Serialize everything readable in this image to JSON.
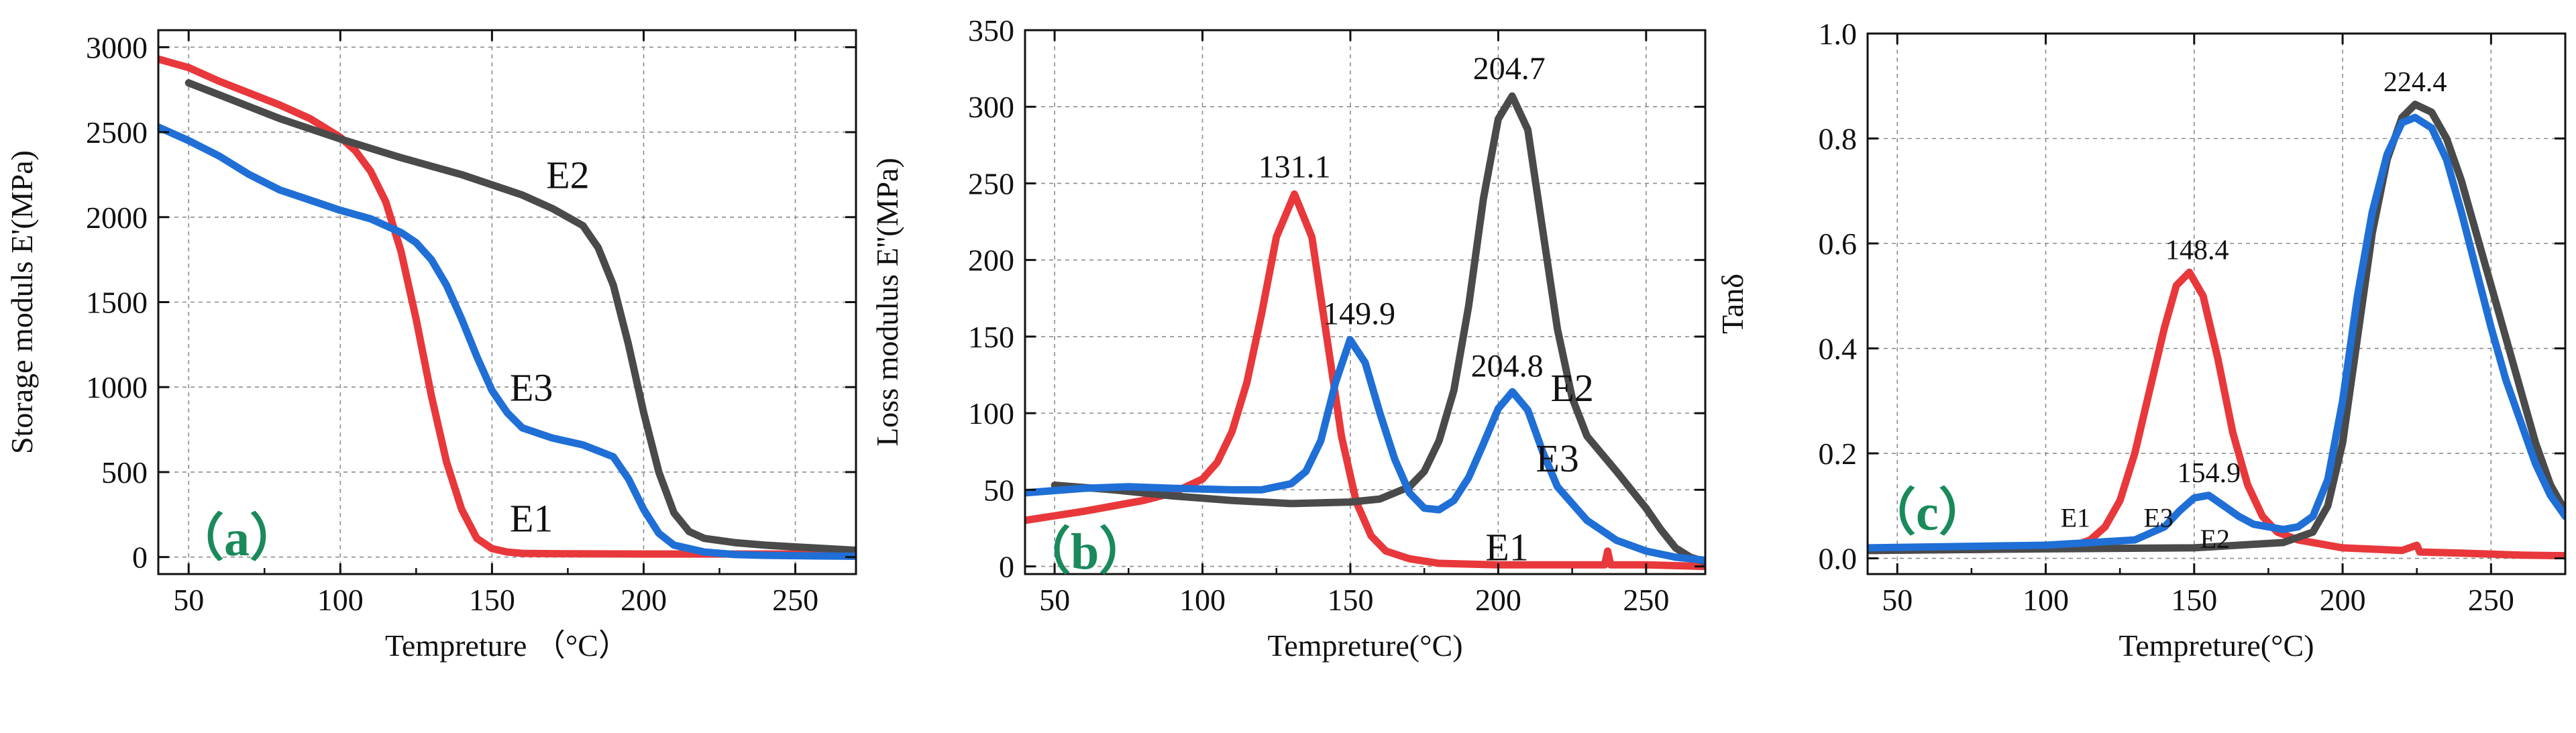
{
  "colors": {
    "E1": "#e8383b",
    "E2": "#4a4a4a",
    "E3": "#1f6fd6",
    "tag": "#1a8a5a",
    "grid": "#8c8c8c"
  },
  "chart_data": [
    {
      "type": "line",
      "panel_label": "（a）",
      "xlabel": "Tempreture （°C）",
      "ylabel": "Storage moduls E'(MPa)",
      "xlim": [
        40,
        270
      ],
      "ylim": [
        -100,
        3100
      ],
      "xticks": [
        "50",
        "100",
        "150",
        "200",
        "250"
      ],
      "yticks": [
        "0",
        "500",
        "1000",
        "1500",
        "2000",
        "2500",
        "3000"
      ],
      "series": [
        {
          "name": "E1",
          "x": [
            40,
            50,
            60,
            70,
            80,
            90,
            100,
            105,
            110,
            115,
            120,
            125,
            130,
            135,
            140,
            145,
            150,
            155,
            160,
            170,
            200,
            250,
            270
          ],
          "y": [
            2930,
            2880,
            2800,
            2730,
            2660,
            2580,
            2470,
            2390,
            2270,
            2090,
            1800,
            1400,
            950,
            560,
            280,
            110,
            50,
            30,
            22,
            20,
            18,
            18,
            18
          ]
        },
        {
          "name": "E2",
          "x": [
            50,
            60,
            80,
            100,
            120,
            140,
            160,
            170,
            180,
            185,
            190,
            195,
            200,
            205,
            210,
            215,
            220,
            230,
            240,
            250,
            260,
            270
          ],
          "y": [
            2790,
            2720,
            2580,
            2460,
            2350,
            2250,
            2130,
            2050,
            1950,
            1820,
            1600,
            1250,
            850,
            500,
            260,
            150,
            110,
            85,
            70,
            60,
            50,
            40
          ]
        },
        {
          "name": "E3",
          "x": [
            40,
            50,
            60,
            70,
            80,
            90,
            100,
            110,
            120,
            125,
            130,
            135,
            140,
            145,
            150,
            155,
            160,
            170,
            180,
            190,
            195,
            200,
            205,
            210,
            220,
            230,
            240,
            250,
            260,
            270
          ],
          "y": [
            2530,
            2450,
            2360,
            2250,
            2160,
            2100,
            2040,
            1990,
            1910,
            1850,
            1750,
            1600,
            1400,
            1180,
            980,
            850,
            760,
            700,
            660,
            590,
            460,
            280,
            140,
            70,
            30,
            15,
            10,
            8,
            6,
            5
          ]
        }
      ],
      "labels": [
        {
          "text": "E2",
          "x": 175,
          "y": 2170
        },
        {
          "text": "E3",
          "x": 163,
          "y": 920
        },
        {
          "text": "E1",
          "x": 163,
          "y": 150
        }
      ]
    },
    {
      "type": "line",
      "panel_label": "（b）",
      "xlabel": "Tempreture(°C)",
      "ylabel": "Loss modulus E''(MPa)",
      "xlim": [
        40,
        270
      ],
      "ylim": [
        -5,
        350
      ],
      "xticks": [
        "50",
        "100",
        "150",
        "200",
        "250"
      ],
      "yticks": [
        "0",
        "50",
        "100",
        "150",
        "200",
        "250",
        "300",
        "350"
      ],
      "series": [
        {
          "name": "E1",
          "x": [
            40,
            60,
            80,
            90,
            100,
            105,
            110,
            115,
            120,
            125,
            131.1,
            137,
            142,
            147,
            152,
            157,
            162,
            170,
            180,
            200,
            230,
            236,
            237,
            238,
            250,
            270
          ],
          "y": [
            30,
            36,
            43,
            48,
            57,
            68,
            88,
            120,
            165,
            215,
            243,
            215,
            150,
            85,
            42,
            20,
            10,
            5,
            2,
            1,
            1,
            1,
            10,
            1,
            1,
            0
          ]
        },
        {
          "name": "E2",
          "x": [
            50,
            70,
            90,
            110,
            130,
            150,
            160,
            170,
            175,
            180,
            185,
            190,
            195,
            200,
            204.7,
            210,
            215,
            220,
            225,
            230,
            240,
            245,
            250,
            255,
            260,
            265,
            270
          ],
          "y": [
            53,
            50,
            46,
            43,
            41,
            42,
            44,
            52,
            62,
            82,
            115,
            170,
            240,
            292,
            307,
            285,
            220,
            155,
            110,
            85,
            62,
            50,
            38,
            24,
            12,
            6,
            3
          ]
        },
        {
          "name": "E3",
          "x": [
            40,
            60,
            75,
            90,
            110,
            120,
            130,
            135,
            140,
            145,
            149.9,
            155,
            160,
            165,
            170,
            175,
            180,
            185,
            190,
            195,
            200,
            204.8,
            210,
            215,
            220,
            230,
            240,
            250,
            260,
            270
          ],
          "y": [
            48,
            51,
            52,
            51,
            50,
            50,
            54,
            62,
            82,
            120,
            148,
            133,
            100,
            70,
            48,
            38,
            37,
            43,
            58,
            80,
            103,
            114,
            102,
            75,
            52,
            30,
            17,
            10,
            6,
            4
          ]
        }
      ],
      "labels": [
        {
          "text": "131.1",
          "x": 131.1,
          "y": 254
        },
        {
          "text": "149.9",
          "x": 153,
          "y": 158
        },
        {
          "text": "204.7",
          "x": 203.7,
          "y": 318
        },
        {
          "text": "204.8",
          "x": 203,
          "y": 124
        },
        {
          "text": "E2",
          "x": 225,
          "y": 108
        },
        {
          "text": "E3",
          "x": 220,
          "y": 62
        },
        {
          "text": "E1",
          "x": 203,
          "y": 4
        }
      ]
    },
    {
      "type": "line",
      "panel_label": "（c）",
      "xlabel": "Tempreture(°C)",
      "ylabel": "Tanδ",
      "xlim": [
        40,
        275
      ],
      "ylim": [
        -0.03,
        1.0
      ],
      "xticks": [
        "50",
        "100",
        "150",
        "200",
        "250"
      ],
      "yticks": [
        "0.0",
        "0.2",
        "0.4",
        "0.6",
        "0.8",
        "1.0"
      ],
      "series": [
        {
          "name": "E1",
          "x": [
            40,
            80,
            100,
            110,
            115,
            120,
            125,
            130,
            135,
            140,
            144,
            148.4,
            153,
            158,
            163,
            168,
            173,
            178,
            185,
            200,
            220,
            225,
            226,
            240,
            250,
            260,
            275
          ],
          "y": [
            0.015,
            0.017,
            0.02,
            0.025,
            0.035,
            0.06,
            0.11,
            0.2,
            0.32,
            0.44,
            0.52,
            0.545,
            0.5,
            0.38,
            0.24,
            0.14,
            0.08,
            0.05,
            0.035,
            0.02,
            0.015,
            0.025,
            0.012,
            0.01,
            0.008,
            0.006,
            0.005
          ]
        },
        {
          "name": "E2",
          "x": [
            40,
            100,
            150,
            180,
            190,
            195,
            200,
            205,
            210,
            215,
            220,
            224.4,
            230,
            235,
            240,
            245,
            250,
            255,
            260,
            265,
            270,
            275
          ],
          "y": [
            0.015,
            0.018,
            0.02,
            0.03,
            0.05,
            0.1,
            0.22,
            0.42,
            0.62,
            0.76,
            0.84,
            0.865,
            0.85,
            0.8,
            0.72,
            0.62,
            0.52,
            0.42,
            0.32,
            0.22,
            0.14,
            0.09
          ]
        },
        {
          "name": "E3",
          "x": [
            40,
            100,
            130,
            140,
            145,
            150,
            154.9,
            160,
            165,
            170,
            175,
            180,
            185,
            190,
            195,
            200,
            205,
            210,
            215,
            220,
            224.4,
            230,
            235,
            240,
            245,
            250,
            255,
            260,
            265,
            270,
            275
          ],
          "y": [
            0.02,
            0.025,
            0.035,
            0.06,
            0.09,
            0.115,
            0.12,
            0.1,
            0.08,
            0.065,
            0.06,
            0.055,
            0.06,
            0.08,
            0.15,
            0.3,
            0.5,
            0.66,
            0.77,
            0.83,
            0.84,
            0.82,
            0.76,
            0.66,
            0.55,
            0.44,
            0.34,
            0.26,
            0.18,
            0.12,
            0.08
          ]
        }
      ],
      "labels": [
        {
          "text": "148.4",
          "x": 151,
          "y": 0.57
        },
        {
          "text": "154.9",
          "x": 155,
          "y": 0.145
        },
        {
          "text": "224.4",
          "x": 224.4,
          "y": 0.89
        },
        {
          "text": "E1",
          "x": 110,
          "y": 0.06
        },
        {
          "text": "E3",
          "x": 138,
          "y": 0.06
        },
        {
          "text": "E2",
          "x": 157,
          "y": 0.02
        }
      ]
    }
  ]
}
